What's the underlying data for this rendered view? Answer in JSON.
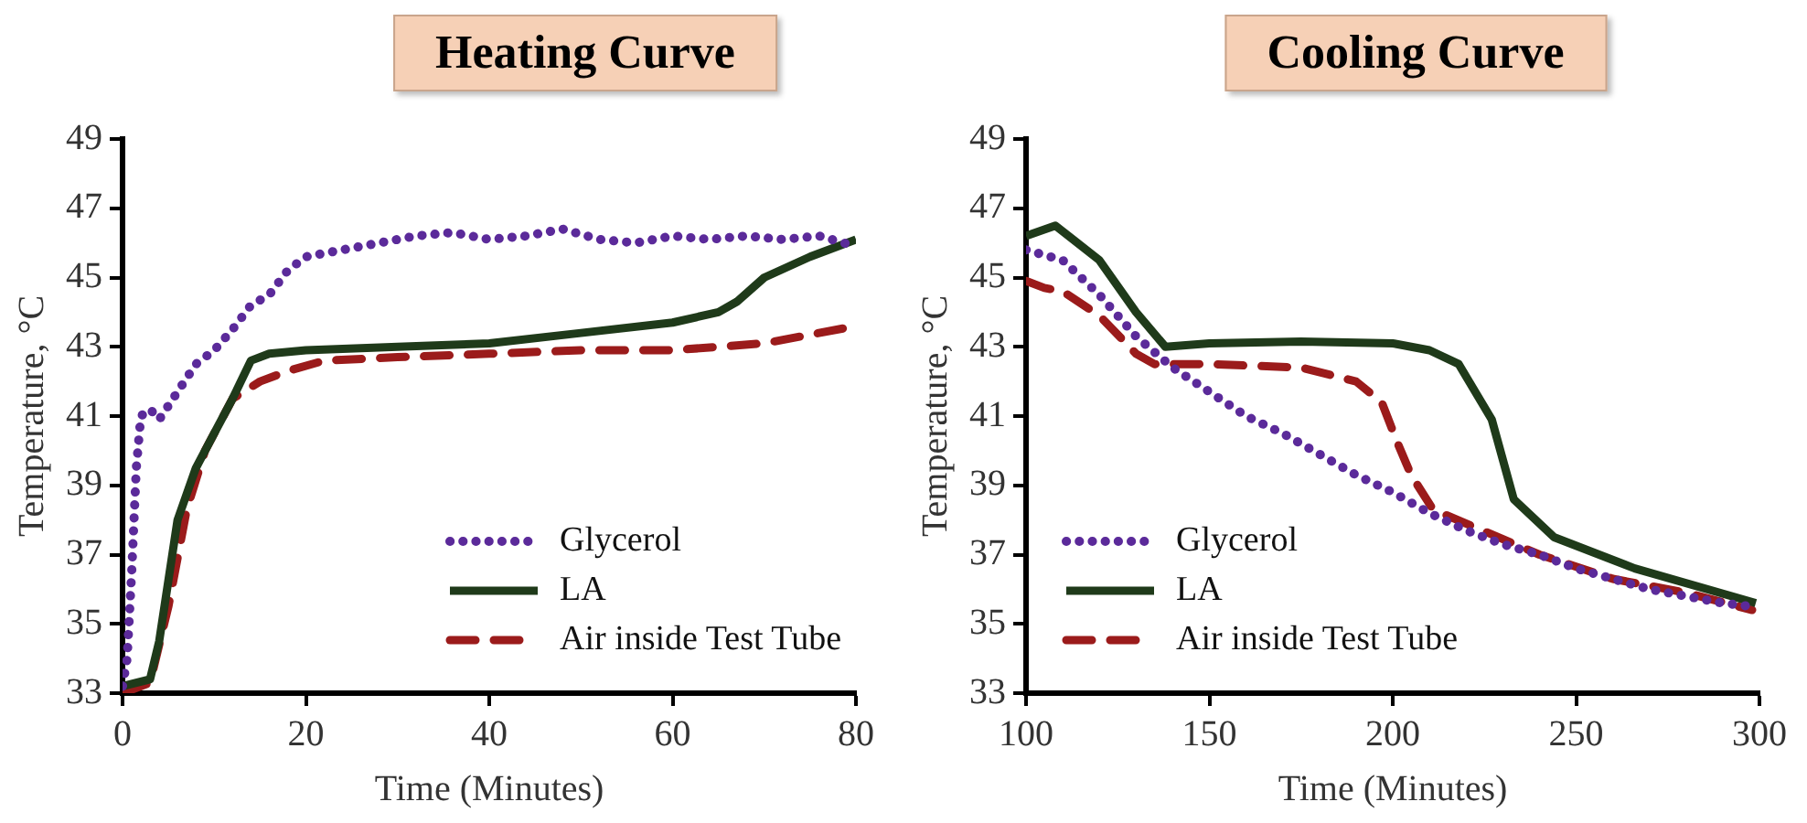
{
  "chart_data": [
    {
      "type": "line",
      "title": "Heating Curve",
      "xlabel": "Time (Minutes)",
      "ylabel": "Temperature, °C",
      "xlim": [
        0,
        80
      ],
      "xticks": [
        0,
        20,
        40,
        60,
        80
      ],
      "ylim": [
        33,
        49
      ],
      "yticks": [
        33,
        35,
        37,
        39,
        41,
        43,
        45,
        47,
        49
      ],
      "grid": false,
      "legend": "bottom right",
      "marker": "none",
      "series": [
        {
          "name": "Glycerol",
          "color": "#5b2a9a",
          "line_style": "dotted",
          "x": [
            0,
            0.5,
            1,
            1.5,
            2,
            3,
            4,
            6,
            8,
            10,
            12,
            14,
            16,
            18,
            20,
            24,
            28,
            32,
            36,
            40,
            44,
            48,
            52,
            56,
            60,
            64,
            68,
            72,
            76,
            80
          ],
          "values": [
            33.2,
            34,
            36.5,
            39.5,
            41,
            41.2,
            40.9,
            41.7,
            42.5,
            42.9,
            43.5,
            44.2,
            44.5,
            45.2,
            45.6,
            45.8,
            46,
            46.2,
            46.3,
            46.1,
            46.2,
            46.4,
            46.1,
            46,
            46.2,
            46.1,
            46.2,
            46.1,
            46.2,
            45.9
          ]
        },
        {
          "name": "LA",
          "color": "#1f3a1a",
          "line_style": "solid",
          "x": [
            0,
            3,
            4,
            6,
            8,
            10,
            12,
            14,
            16,
            20,
            30,
            40,
            50,
            60,
            65,
            67,
            70,
            75,
            80
          ],
          "values": [
            33.2,
            33.4,
            34.5,
            38,
            39.5,
            40.5,
            41.5,
            42.6,
            42.8,
            42.9,
            43,
            43.1,
            43.4,
            43.7,
            44,
            44.3,
            45,
            45.6,
            46.1
          ]
        },
        {
          "name": "Air inside Test Tube",
          "color": "#9b1b1b",
          "line_style": "dashed",
          "x": [
            0,
            3,
            5,
            7,
            9,
            12,
            15,
            18,
            22,
            30,
            40,
            50,
            60,
            70,
            80
          ],
          "values": [
            33,
            33.3,
            35.5,
            38.3,
            40,
            41.5,
            42,
            42.3,
            42.6,
            42.7,
            42.8,
            42.9,
            42.9,
            43.1,
            43.6
          ]
        }
      ]
    },
    {
      "type": "line",
      "title": "Cooling Curve",
      "xlabel": "Time (Minutes)",
      "ylabel": "Temperature, °C",
      "xlim": [
        100,
        300
      ],
      "xticks": [
        100,
        150,
        200,
        250,
        300
      ],
      "ylim": [
        33,
        49
      ],
      "yticks": [
        33,
        35,
        37,
        39,
        41,
        43,
        45,
        47,
        49
      ],
      "grid": false,
      "legend": "bottom left",
      "marker": "none",
      "series": [
        {
          "name": "Glycerol",
          "color": "#5b2a9a",
          "line_style": "dotted",
          "x": [
            100,
            110,
            120,
            130,
            140,
            150,
            160,
            170,
            180,
            190,
            200,
            210,
            220,
            230,
            240,
            250,
            260,
            270,
            280,
            290,
            298
          ],
          "values": [
            45.8,
            45.5,
            44.5,
            43.3,
            42.4,
            41.7,
            41,
            40.5,
            39.9,
            39.3,
            38.8,
            38.2,
            37.7,
            37.3,
            37,
            36.6,
            36.3,
            36,
            35.8,
            35.6,
            35.5
          ]
        },
        {
          "name": "LA",
          "color": "#1f3a1a",
          "line_style": "solid",
          "x": [
            100,
            108,
            120,
            130,
            138,
            150,
            175,
            200,
            210,
            218,
            227,
            233,
            244,
            266,
            299
          ],
          "values": [
            46.2,
            46.5,
            45.5,
            44,
            43,
            43.1,
            43.15,
            43.1,
            42.9,
            42.5,
            40.9,
            38.6,
            37.5,
            36.6,
            35.6
          ]
        },
        {
          "name": "Air inside Test Tube",
          "color": "#9b1b1b",
          "line_style": "dashed",
          "x": [
            100,
            105,
            110,
            120,
            130,
            135,
            150,
            175,
            190,
            197,
            201,
            205,
            211,
            240,
            260,
            280,
            298
          ],
          "values": [
            44.9,
            44.7,
            44.6,
            43.9,
            42.8,
            42.5,
            42.5,
            42.4,
            42,
            41.4,
            40.3,
            39.3,
            38.3,
            37,
            36.3,
            35.9,
            35.4
          ]
        }
      ]
    }
  ]
}
